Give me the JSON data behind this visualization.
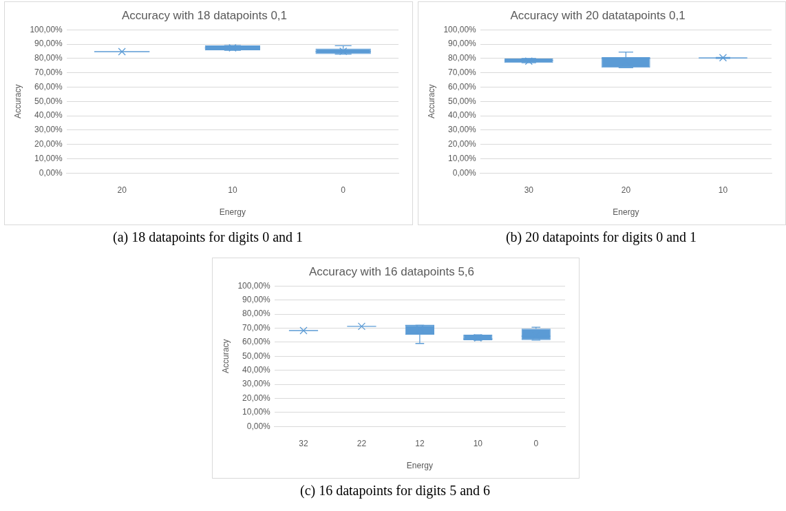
{
  "chart_data": [
    {
      "type": "box",
      "title": "Accuracy with 18 datapoints 0,1",
      "xlabel": "Energy",
      "ylabel": "Accuracy",
      "categories": [
        "20",
        "10",
        "0"
      ],
      "color": "#5b9bd5",
      "grid": "y",
      "ylim": [
        0,
        100
      ],
      "yticks": [
        {
          "value": 0,
          "label": "0,00%"
        },
        {
          "value": 10,
          "label": "10,00%"
        },
        {
          "value": 20,
          "label": "20,00%"
        },
        {
          "value": 30,
          "label": "30,00%"
        },
        {
          "value": 40,
          "label": "40,00%"
        },
        {
          "value": 50,
          "label": "50,00%"
        },
        {
          "value": 60,
          "label": "60,00%"
        },
        {
          "value": 70,
          "label": "70,00%"
        },
        {
          "value": 80,
          "label": "80,00%"
        },
        {
          "value": 90,
          "label": "90,00%"
        },
        {
          "value": 100,
          "label": "100,00%"
        }
      ],
      "boxes": [
        {
          "low": 84.8,
          "q1": 84.8,
          "median": 84.8,
          "q3": 84.8,
          "high": 84.8,
          "mean": 84.8
        },
        {
          "low": 85.7,
          "q1": 85.7,
          "median": 87.4,
          "q3": 89.1,
          "high": 89.1,
          "mean": 87.4
        },
        {
          "low": 83.1,
          "q1": 83.1,
          "median": 84.9,
          "q3": 86.9,
          "high": 88.9,
          "mean": 85.0
        }
      ],
      "annotations": [
        "(a) 18 datapoints for digits 0 and 1"
      ]
    },
    {
      "type": "box",
      "title": "Accuracy with 20 datatapoints 0,1",
      "xlabel": "Energy",
      "ylabel": "Accuracy",
      "categories": [
        "30",
        "20",
        "10"
      ],
      "color": "#5b9bd5",
      "grid": "y",
      "ylim": [
        0,
        100
      ],
      "yticks": [
        {
          "value": 0,
          "label": "0,00%"
        },
        {
          "value": 10,
          "label": "10,00%"
        },
        {
          "value": 20,
          "label": "20,00%"
        },
        {
          "value": 30,
          "label": "30,00%"
        },
        {
          "value": 40,
          "label": "40,00%"
        },
        {
          "value": 50,
          "label": "50,00%"
        },
        {
          "value": 60,
          "label": "60,00%"
        },
        {
          "value": 70,
          "label": "70,00%"
        },
        {
          "value": 80,
          "label": "80,00%"
        },
        {
          "value": 90,
          "label": "90,00%"
        },
        {
          "value": 100,
          "label": "100,00%"
        }
      ],
      "boxes": [
        {
          "low": 77.0,
          "q1": 77.0,
          "median": 78.7,
          "q3": 80.0,
          "high": 80.0,
          "mean": 78.2
        },
        {
          "low": 73.6,
          "q1": 73.6,
          "median": 80.0,
          "q3": 81.0,
          "high": 84.5,
          "mean": 78.2
        },
        {
          "low": 80.0,
          "q1": 80.1,
          "median": 80.4,
          "q3": 80.7,
          "high": 80.7,
          "mean": 80.6
        }
      ],
      "annotations": [
        "(b) 20 datapoints for digits 0 and 1"
      ]
    },
    {
      "type": "box",
      "title": "Accuracy with 16 datapoints 5,6",
      "xlabel": "Energy",
      "ylabel": "Accuracy",
      "categories": [
        "32",
        "22",
        "12",
        "10",
        "0"
      ],
      "color": "#5b9bd5",
      "grid": "y",
      "ylim": [
        0,
        100
      ],
      "yticks": [
        {
          "value": 0,
          "label": "0,00%"
        },
        {
          "value": 10,
          "label": "10,00%"
        },
        {
          "value": 20,
          "label": "20,00%"
        },
        {
          "value": 30,
          "label": "30,00%"
        },
        {
          "value": 40,
          "label": "40,00%"
        },
        {
          "value": 50,
          "label": "50,00%"
        },
        {
          "value": 60,
          "label": "60,00%"
        },
        {
          "value": 70,
          "label": "70,00%"
        },
        {
          "value": 80,
          "label": "80,00%"
        },
        {
          "value": 90,
          "label": "90,00%"
        },
        {
          "value": 100,
          "label": "100,00%"
        }
      ],
      "boxes": [
        {
          "low": 68.3,
          "q1": 68.3,
          "median": 68.3,
          "q3": 68.3,
          "high": 68.3,
          "mean": 68.3
        },
        {
          "low": 71.3,
          "q1": 71.3,
          "median": 71.3,
          "q3": 71.3,
          "high": 71.3,
          "mean": 71.3
        },
        {
          "low": 59.1,
          "q1": 65.3,
          "median": 72.0,
          "q3": 72.1,
          "high": 72.1,
          "mean": 69.5
        },
        {
          "low": 61.4,
          "q1": 61.4,
          "median": 62.3,
          "q3": 65.3,
          "high": 65.3,
          "mean": 63.1
        },
        {
          "low": 61.5,
          "q1": 61.5,
          "median": 64.3,
          "q3": 69.6,
          "high": 70.7,
          "mean": 64.7
        }
      ],
      "annotations": [
        "(c) 16 datapoints for digits 5 and 6"
      ]
    }
  ]
}
